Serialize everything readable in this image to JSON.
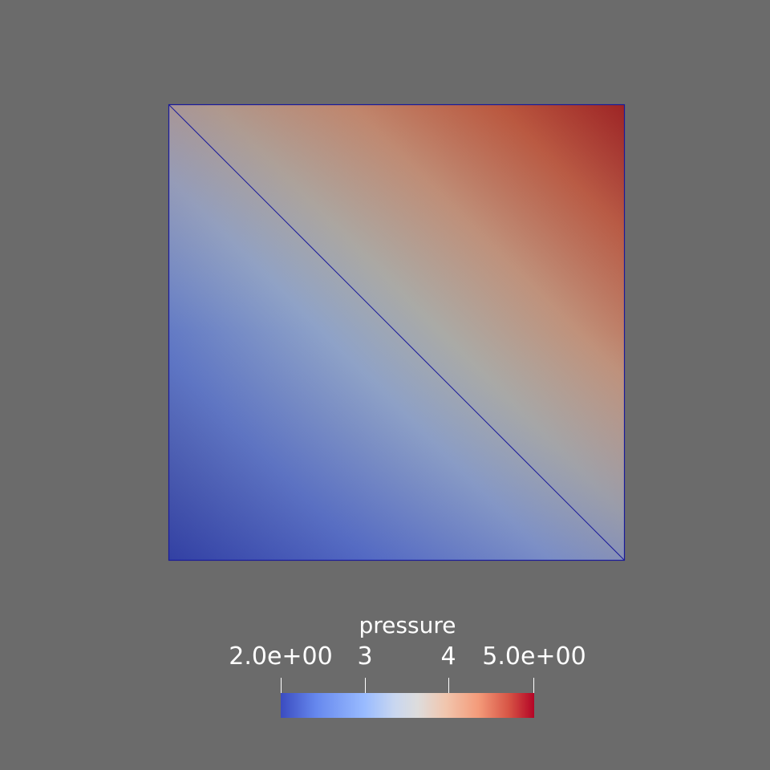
{
  "scalar_bar": {
    "title": "pressure",
    "min_label": "2.0e+00",
    "max_label": "5.0e+00",
    "ticks": [
      {
        "value": 2,
        "label": "2.0e+00"
      },
      {
        "value": 3,
        "label": "3"
      },
      {
        "value": 4,
        "label": "4"
      },
      {
        "value": 5,
        "label": "5.0e+00"
      }
    ],
    "range": [
      2,
      5
    ],
    "colormap": "cool-to-warm"
  },
  "field": {
    "variable": "pressure",
    "corner_values": {
      "bottom_left": 2.0,
      "bottom_right": 3.2,
      "top_left": 3.8,
      "top_right": 5.0
    },
    "mesh": "two-triangle quad with diagonal edge",
    "edge_color": "#1a1a9a"
  },
  "colors": {
    "background": "#6b6b6b",
    "low": "#3b4cc0",
    "mid": "#dddcdc",
    "high": "#b40426"
  }
}
